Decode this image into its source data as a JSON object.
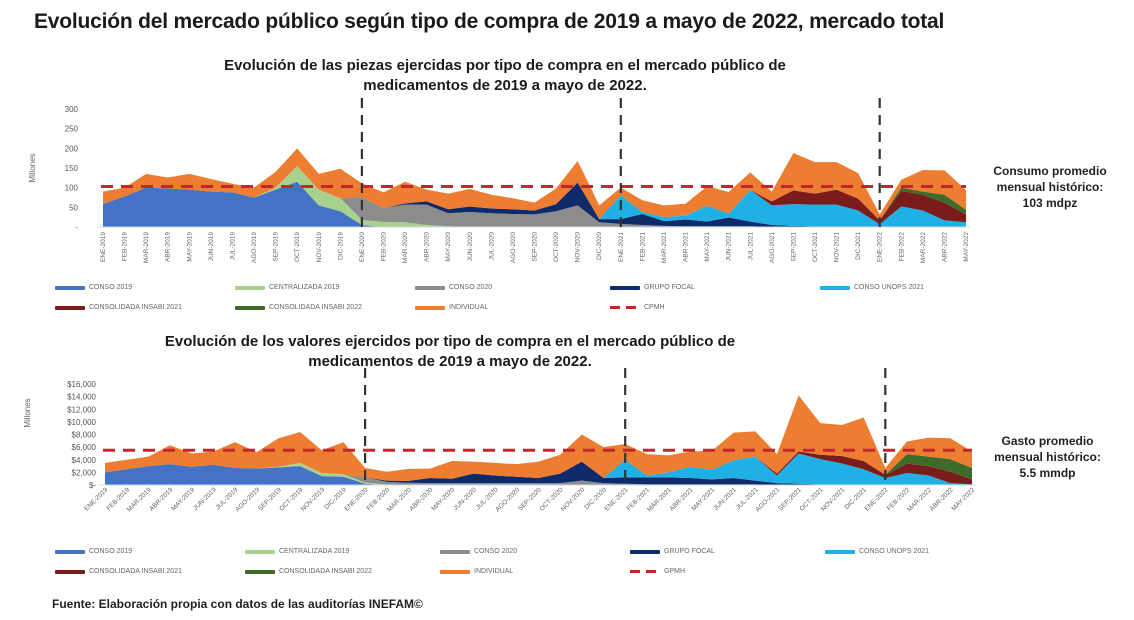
{
  "main_title": "Evolución del mercado público según tipo de compra de 2019 a mayo de 2022, mercado total",
  "source": "Fuente: Elaboración propia con datos de las auditorías INEFAM©",
  "colors": {
    "conso2019": "#4472c4",
    "centralizada2019": "#a9d18e",
    "conso2020": "#8c8c8c",
    "grupo_focal": "#0f2a6b",
    "conso_unops2021": "#1fb0e6",
    "insabi2021": "#7b1c1c",
    "insabi2022": "#3f6b2a",
    "individual": "#ed7d31",
    "reference": "#c0282d",
    "divider": "#333333"
  },
  "chart_data": [
    {
      "type": "area",
      "stacked": true,
      "title_line1": "Evolución de las piezas ejercidas por tipo de compra en el mercado público de",
      "title_line2": "medicamentos de 2019 a mayo de 2022.",
      "ylabel": "Millones",
      "xlabel": "",
      "ylim": [
        0,
        300
      ],
      "yticks": [
        "-",
        "50",
        "100",
        "150",
        "200",
        "250",
        "300"
      ],
      "ytick_values": [
        0,
        50,
        100,
        150,
        200,
        250,
        300
      ],
      "grid": false,
      "legend_position": "bottom",
      "reference_line": {
        "name": "CPMH",
        "value": 103
      },
      "year_dividers": [
        "ENE-2020",
        "ENE-2021",
        "ENE-2022"
      ],
      "side_note": [
        "Consumo promedio",
        "mensual histórico:",
        "103 mdpz"
      ],
      "categories": [
        "ENE-2019",
        "FEB-2019",
        "MAR-2019",
        "ABR-2019",
        "MAY-2019",
        "JUN-2019",
        "JUL-2019",
        "AGO-2019",
        "SEP-2019",
        "OCT-2019",
        "NOV-2019",
        "DIC-2019",
        "ENE-2020",
        "FEB-2020",
        "MAR-2020",
        "ABR-2020",
        "MAY-2020",
        "JUN-2020",
        "JUL-2020",
        "AGO-2020",
        "SEP-2020",
        "OCT-2020",
        "NOV-2020",
        "DIC-2020",
        "ENE-2021",
        "FEB-2021",
        "MAR-2021",
        "ABR-2021",
        "MAY-2021",
        "JUN-2021",
        "JUL-2021",
        "AGO-2021",
        "SEP-2021",
        "OCT-2021",
        "NOV-2021",
        "DIC-2021",
        "ENE-2022",
        "FEB-2022",
        "MAR-2022",
        "ABR-2022",
        "MAY-2022"
      ],
      "series": [
        {
          "name": "CONSO 2019",
          "key": "conso2019",
          "values": [
            58,
            78,
            100,
            98,
            95,
            90,
            88,
            75,
            95,
            115,
            55,
            40,
            5,
            0,
            0,
            0,
            0,
            0,
            0,
            0,
            0,
            0,
            0,
            0,
            0,
            0,
            0,
            0,
            0,
            0,
            0,
            0,
            0,
            0,
            0,
            0,
            0,
            0,
            0,
            0,
            0
          ]
        },
        {
          "name": "CENTRALIZADA 2019",
          "key": "centralizada2019",
          "values": [
            0,
            0,
            0,
            0,
            0,
            0,
            0,
            0,
            5,
            40,
            40,
            33,
            13,
            13,
            12,
            5,
            2,
            0,
            0,
            0,
            0,
            0,
            0,
            0,
            0,
            0,
            0,
            0,
            0,
            0,
            0,
            0,
            0,
            0,
            0,
            0,
            0,
            0,
            0,
            0,
            0
          ]
        },
        {
          "name": "CONSO 2020",
          "key": "conso2020",
          "values": [
            0,
            0,
            0,
            0,
            0,
            0,
            0,
            0,
            0,
            0,
            0,
            0,
            58,
            35,
            45,
            52,
            33,
            38,
            35,
            33,
            32,
            40,
            55,
            12,
            8,
            5,
            3,
            2,
            2,
            2,
            2,
            0,
            0,
            0,
            0,
            0,
            0,
            0,
            0,
            0,
            0
          ]
        },
        {
          "name": "GRUPO FOCAL",
          "key": "grupo_focal",
          "values": [
            0,
            0,
            0,
            0,
            0,
            0,
            0,
            0,
            0,
            0,
            0,
            0,
            0,
            0,
            3,
            8,
            10,
            14,
            12,
            12,
            10,
            18,
            58,
            8,
            12,
            28,
            12,
            17,
            12,
            22,
            12,
            5,
            3,
            2,
            2,
            2,
            2,
            2,
            2,
            2,
            2
          ]
        },
        {
          "name": "CONSO UNOPS 2021",
          "key": "conso_unops2021",
          "values": [
            0,
            0,
            0,
            0,
            0,
            0,
            0,
            0,
            0,
            0,
            0,
            0,
            0,
            0,
            0,
            0,
            0,
            0,
            0,
            0,
            0,
            0,
            0,
            0,
            60,
            5,
            10,
            10,
            40,
            10,
            80,
            50,
            55,
            55,
            55,
            40,
            5,
            50,
            40,
            15,
            10
          ]
        },
        {
          "name": "CONSOLIDADA INSABI 2021",
          "key": "insabi2021",
          "values": [
            0,
            0,
            0,
            0,
            0,
            0,
            0,
            0,
            0,
            0,
            0,
            0,
            0,
            0,
            0,
            0,
            0,
            0,
            0,
            0,
            0,
            0,
            0,
            0,
            0,
            0,
            0,
            0,
            0,
            0,
            0,
            10,
            35,
            28,
            38,
            30,
            10,
            40,
            40,
            45,
            20
          ]
        },
        {
          "name": "CONSOLIDADA INSABI 2022",
          "key": "insabi2022",
          "values": [
            0,
            0,
            0,
            0,
            0,
            0,
            0,
            0,
            0,
            0,
            0,
            0,
            0,
            0,
            0,
            0,
            0,
            0,
            0,
            0,
            0,
            0,
            0,
            0,
            0,
            0,
            0,
            0,
            0,
            0,
            0,
            0,
            0,
            0,
            0,
            0,
            0,
            8,
            8,
            20,
            12
          ]
        },
        {
          "name": "INDIVIDUAL",
          "key": "individual",
          "values": [
            32,
            22,
            35,
            28,
            40,
            32,
            22,
            25,
            40,
            45,
            40,
            75,
            35,
            40,
            55,
            30,
            40,
            45,
            35,
            28,
            20,
            40,
            55,
            35,
            20,
            30,
            30,
            30,
            50,
            55,
            45,
            25,
            95,
            80,
            70,
            65,
            15,
            20,
            55,
            62,
            50
          ]
        }
      ],
      "legend": [
        {
          "label": "CONSO 2019",
          "key": "conso2019"
        },
        {
          "label": "CENTRALIZADA 2019",
          "key": "centralizada2019"
        },
        {
          "label": "CONSO 2020",
          "key": "conso2020"
        },
        {
          "label": "GRUPO FOCAL",
          "key": "grupo_focal"
        },
        {
          "label": "CONSO UNOPS 2021",
          "key": "conso_unops2021"
        },
        {
          "label": "CONSOLIDADA INSABI 2021",
          "key": "insabi2021"
        },
        {
          "label": "CONSOLIDADA INSABI 2022",
          "key": "insabi2022"
        },
        {
          "label": "INDIVIDUAL",
          "key": "individual"
        },
        {
          "label": "CPMH",
          "key": "reference",
          "dashed": true
        }
      ]
    },
    {
      "type": "area",
      "stacked": true,
      "title_line1": "Evolución de los valores ejercidos por tipo de compra en el mercado público de",
      "title_line2": "medicamentos de 2019 a mayo de 2022.",
      "ylabel": "Millones",
      "xlabel": "",
      "ylim": [
        0,
        16000
      ],
      "yticks": [
        "$-",
        "$2,000",
        "$4,000",
        "$6,000",
        "$8,000",
        "$10,000",
        "$12,000",
        "$14,000",
        "$16,000"
      ],
      "ytick_values": [
        0,
        2000,
        4000,
        6000,
        8000,
        10000,
        12000,
        14000,
        16000
      ],
      "grid": false,
      "legend_position": "bottom",
      "reference_line": {
        "name": "GPMH",
        "value": 5500
      },
      "year_dividers": [
        "ENE-2020",
        "ENE-2021",
        "ENE-2022"
      ],
      "side_note": [
        "Gasto promedio",
        "mensual histórico:",
        "5.5 mmdp"
      ],
      "categories": [
        "ENE-2019",
        "FEB-2019",
        "MAR-2019",
        "ABR-2019",
        "MAY-2019",
        "JUN-2019",
        "JUL-2019",
        "AGO-2019",
        "SEP-2019",
        "OCT-2019",
        "NOV-2019",
        "DIC-2019",
        "ENE-2020",
        "FEB-2020",
        "MAR-2020",
        "ABR-2020",
        "MAY-2020",
        "JUN-2020",
        "JUL-2020",
        "AGO-2020",
        "SEP-2020",
        "OCT-2020",
        "NOV-2020",
        "DIC-2020",
        "ENE-2021",
        "FEB-2021",
        "MAR-2021",
        "ABR-2021",
        "MAY-2021",
        "JUN-2021",
        "JUL-2021",
        "AGO-2021",
        "SEP-2021",
        "OCT-2021",
        "NOV-2021",
        "DIC-2021",
        "ENE-2022",
        "FEB-2022",
        "MAR-2022",
        "ABR-2022",
        "MAY-2022"
      ],
      "series": [
        {
          "name": "CONSO 2019",
          "key": "conso2019",
          "values": [
            2000,
            2500,
            3000,
            3300,
            2900,
            3200,
            2700,
            2600,
            2800,
            3000,
            1400,
            1300,
            200,
            0,
            0,
            0,
            0,
            0,
            0,
            0,
            0,
            0,
            0,
            0,
            0,
            0,
            0,
            0,
            0,
            0,
            0,
            0,
            0,
            0,
            0,
            0,
            0,
            0,
            0,
            0,
            0
          ]
        },
        {
          "name": "CENTRALIZADA 2019",
          "key": "centralizada2019",
          "values": [
            0,
            0,
            0,
            0,
            0,
            0,
            0,
            0,
            100,
            500,
            500,
            400,
            200,
            100,
            50,
            0,
            0,
            0,
            0,
            0,
            0,
            0,
            0,
            0,
            0,
            0,
            0,
            0,
            0,
            0,
            0,
            0,
            0,
            0,
            0,
            0,
            0,
            0,
            0,
            0,
            0
          ]
        },
        {
          "name": "CONSO 2020",
          "key": "conso2020",
          "values": [
            0,
            0,
            0,
            0,
            0,
            0,
            0,
            0,
            0,
            0,
            0,
            0,
            800,
            400,
            300,
            300,
            300,
            300,
            300,
            300,
            300,
            300,
            700,
            300,
            200,
            100,
            100,
            100,
            100,
            100,
            100,
            0,
            0,
            0,
            0,
            0,
            0,
            0,
            0,
            0,
            0
          ]
        },
        {
          "name": "GRUPO FOCAL",
          "key": "grupo_focal",
          "values": [
            0,
            0,
            0,
            0,
            0,
            0,
            0,
            0,
            0,
            0,
            0,
            0,
            0,
            200,
            300,
            800,
            700,
            1500,
            1200,
            1000,
            800,
            1500,
            3000,
            800,
            1000,
            1100,
            1100,
            1000,
            800,
            1000,
            600,
            300,
            200,
            100,
            100,
            100,
            100,
            100,
            100,
            100,
            100
          ]
        },
        {
          "name": "CONSO UNOPS 2021",
          "key": "conso_unops2021",
          "values": [
            0,
            0,
            0,
            0,
            0,
            0,
            0,
            0,
            0,
            0,
            0,
            0,
            0,
            0,
            0,
            0,
            0,
            0,
            0,
            0,
            0,
            0,
            0,
            0,
            2800,
            300,
            800,
            1800,
            1500,
            2800,
            3800,
            1200,
            4800,
            4000,
            3300,
            2400,
            1000,
            1800,
            1400,
            200,
            0
          ]
        },
        {
          "name": "CONSOLIDADA INSABI 2021",
          "key": "insabi2021",
          "values": [
            0,
            0,
            0,
            0,
            0,
            0,
            0,
            0,
            0,
            0,
            0,
            0,
            0,
            0,
            0,
            0,
            0,
            0,
            0,
            0,
            0,
            0,
            0,
            0,
            0,
            0,
            0,
            0,
            0,
            0,
            0,
            300,
            300,
            700,
            1200,
            1300,
            500,
            1500,
            1500,
            1800,
            800
          ]
        },
        {
          "name": "CONSOLIDADA INSABI 2022",
          "key": "insabi2022",
          "values": [
            0,
            0,
            0,
            0,
            0,
            0,
            0,
            0,
            0,
            0,
            0,
            0,
            0,
            0,
            0,
            0,
            0,
            0,
            0,
            0,
            0,
            0,
            0,
            0,
            0,
            0,
            0,
            0,
            0,
            0,
            0,
            0,
            0,
            0,
            0,
            0,
            0,
            1500,
            1500,
            2000,
            1800
          ]
        },
        {
          "name": "INDIVIDUAL",
          "key": "individual",
          "values": [
            1500,
            1500,
            1500,
            3000,
            2100,
            2100,
            4100,
            2600,
            4500,
            4900,
            3600,
            5100,
            1500,
            1400,
            1900,
            1500,
            2800,
            1900,
            2000,
            2000,
            2600,
            3000,
            4300,
            4900,
            2500,
            3400,
            2700,
            2400,
            3000,
            4400,
            4000,
            3100,
            8900,
            5000,
            4900,
            6900,
            1100,
            2000,
            3000,
            3300,
            2600
          ]
        }
      ],
      "legend": [
        {
          "label": "CONSO 2019",
          "key": "conso2019"
        },
        {
          "label": "CENTRALIZADA 2019",
          "key": "centralizada2019"
        },
        {
          "label": "CONSO 2020",
          "key": "conso2020"
        },
        {
          "label": "GRUPO FOCAL",
          "key": "grupo_focal"
        },
        {
          "label": "CONSO UNOPS 2021",
          "key": "conso_unops2021"
        },
        {
          "label": "CONSOLIDADA INSABI 2021",
          "key": "insabi2021"
        },
        {
          "label": "CONSOLIDADA INSABI 2022",
          "key": "insabi2022"
        },
        {
          "label": "INDIVIDUAL",
          "key": "individual"
        },
        {
          "label": "GPMH",
          "key": "reference",
          "dashed": true
        }
      ]
    }
  ]
}
